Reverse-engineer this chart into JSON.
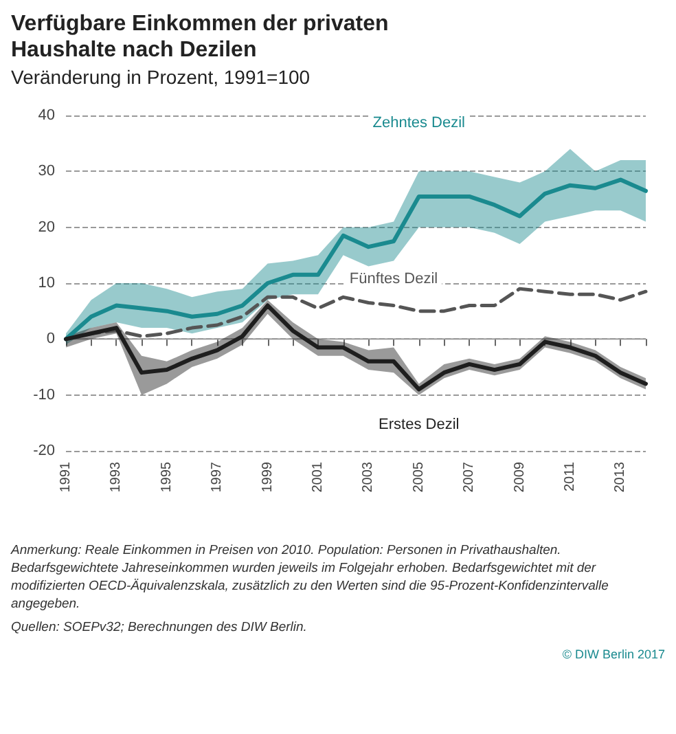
{
  "chart_data": {
    "type": "line",
    "title": "Verfügbare Einkommen der privaten Haushalte nach Dezilen",
    "subtitle": "Veränderung in Prozent, 1991=100",
    "categories": [
      "1991",
      null,
      "1993",
      null,
      "1995",
      null,
      "1997",
      null,
      "1999",
      null,
      "2001",
      null,
      "2003",
      null,
      "2005",
      null,
      "2007",
      null,
      "2009",
      null,
      "2011",
      null,
      "2013",
      null
    ],
    "series": [
      {
        "name": "Zehntes Dezil",
        "color": "#1a8a8f",
        "line_style": "solid",
        "values": [
          0,
          4,
          6,
          5.5,
          5,
          4,
          4.5,
          6,
          10,
          11.5,
          11.5,
          18.5,
          16.5,
          17.5,
          25.5,
          25.5,
          25.5,
          24,
          22,
          26,
          27.5,
          27,
          28.5,
          26.5
        ],
        "lower": [
          -1,
          2,
          3,
          2,
          2,
          1,
          2,
          3,
          7,
          8,
          8,
          15,
          13,
          14,
          20,
          20,
          20,
          19,
          17,
          21,
          22,
          23,
          23,
          21
        ],
        "upper": [
          1,
          7,
          10,
          10,
          9,
          7.5,
          8.5,
          9,
          13.5,
          14,
          15,
          20,
          20,
          21,
          30,
          30,
          30,
          29,
          28,
          30,
          34,
          30,
          32,
          32
        ]
      },
      {
        "name": "Fünftes Dezil",
        "color": "#555555",
        "line_style": "dashed",
        "values": [
          0,
          1,
          1.5,
          0.5,
          1,
          2,
          2.5,
          4,
          7.5,
          7.5,
          5.5,
          7.5,
          6.5,
          6,
          5,
          5,
          6,
          6,
          9,
          8.5,
          8,
          8,
          7,
          8.5
        ]
      },
      {
        "name": "Erstes Dezil",
        "color": "#1e1e1e",
        "line_style": "solid",
        "values": [
          0,
          1,
          2,
          -6,
          -5.5,
          -3.5,
          -2,
          0.5,
          6,
          1.5,
          -1.5,
          -1.5,
          -4,
          -4,
          -9,
          -6,
          -4.5,
          -5.5,
          -4.5,
          -0.5,
          -1.5,
          -3,
          -6,
          -8
        ],
        "lower": [
          -1.5,
          0,
          1,
          -10,
          -8,
          -5,
          -3.5,
          -1,
          4.5,
          0,
          -3,
          -3,
          -5.5,
          -6,
          -10,
          -7,
          -5.5,
          -6.5,
          -5.5,
          -1.5,
          -2.5,
          -4,
          -7,
          -9
        ],
        "upper": [
          0.5,
          2,
          3,
          -3,
          -4,
          -2,
          -0.5,
          2,
          7,
          3,
          0,
          -0.5,
          -2,
          -1.5,
          -8,
          -4.5,
          -3.5,
          -4.5,
          -3.5,
          0.5,
          -0.5,
          -2,
          -5,
          -7
        ]
      }
    ],
    "ylim": [
      -20,
      40
    ],
    "yticks": [
      -20,
      -10,
      0,
      10,
      20,
      30,
      40
    ],
    "grid": "y",
    "legend": false,
    "marker": "none",
    "annotations": [
      "Anmerkung: Reale Einkommen in Preisen von 2010. Population: Personen in Privathaushalten. Bedarfsgewichtete Jahreseinkommen wurden jeweils im Folgejahr erhoben. Bedarfsgewichtet mit der modifizierten OECD-Äquivalenzskala, zusätzlich zu den Werten sind die 95-Prozent-Konfidenzintervalle angegeben.",
      "Quellen: SOEPv32; Berechnungen des DIW Berlin.",
      "© DIW Berlin 2017"
    ]
  }
}
